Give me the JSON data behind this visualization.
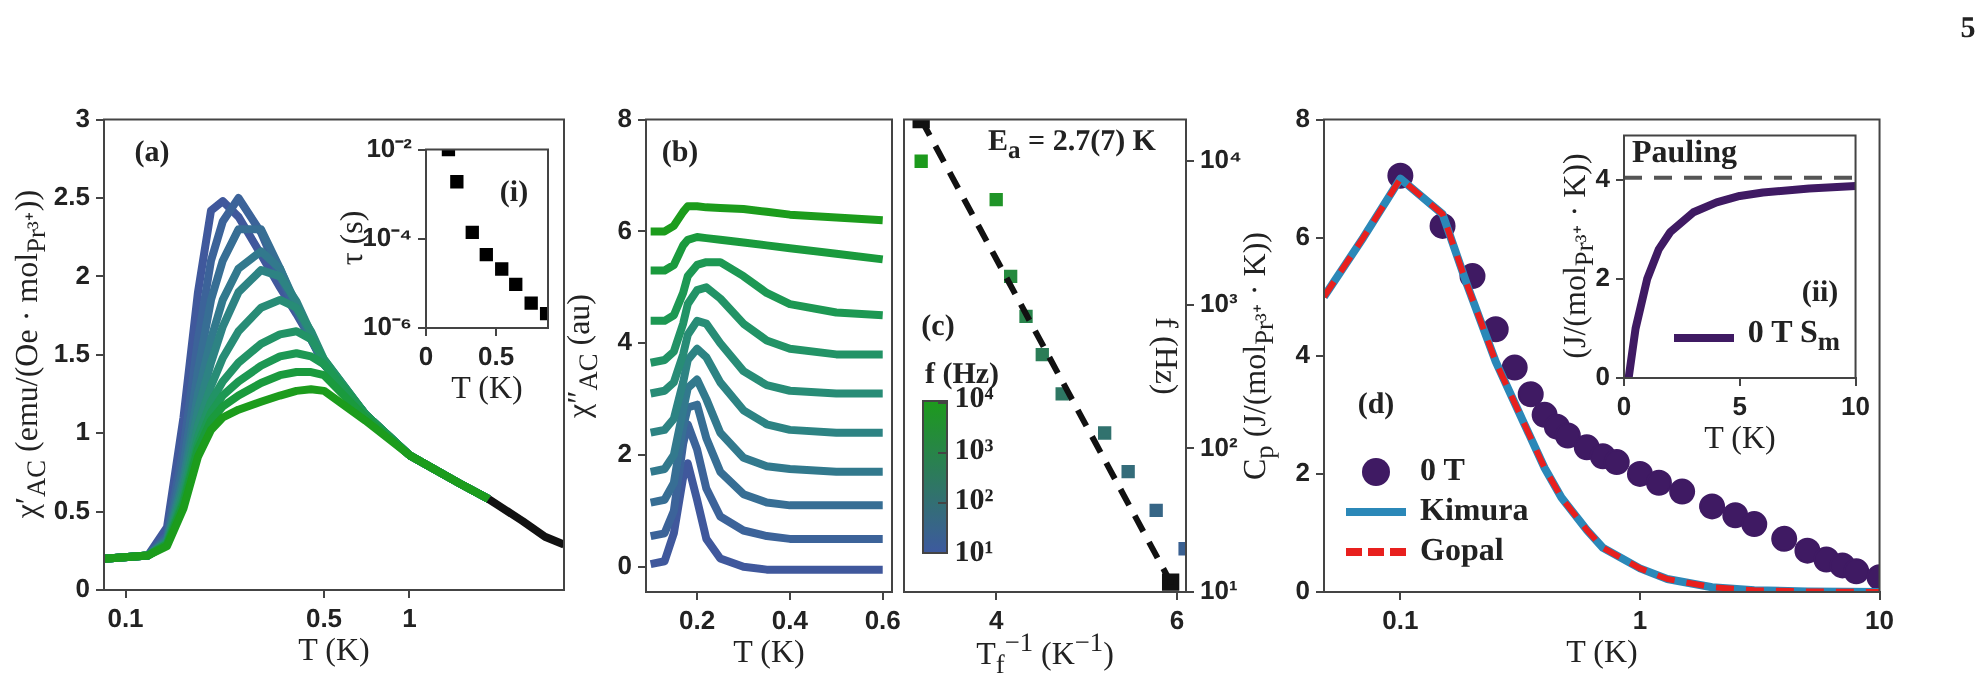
{
  "chart_data": [
    {
      "type": "line",
      "xlabel": "T (K)",
      "ylabel": "χ′$_{AC}$ (emu/(Oe · mol$_{Pr³⁺}$))",
      "log": "x",
      "xlim": [
        0.084,
        3.5
      ],
      "xticks": [
        0.1,
        0.5,
        1
      ],
      "ylim": [
        0,
        3
      ],
      "yticks": [
        0,
        0.5,
        1,
        1.5,
        2,
        2.5,
        3
      ],
      "annotations": [
        "(a)"
      ],
      "x": [
        0.084,
        0.12,
        0.14,
        0.16,
        0.18,
        0.2,
        0.22,
        0.25,
        0.3,
        0.35,
        0.4,
        0.45,
        0.5,
        0.7,
        1,
        1.5,
        1.9
      ],
      "series": [
        {
          "color": "#40589c",
          "values": [
            0.2,
            0.22,
            0.4,
            1.1,
            1.9,
            2.42,
            2.48,
            2.38,
            2.14,
            1.93,
            1.76,
            1.6,
            1.44,
            1.12,
            0.86,
            0.68,
            0.58
          ]
        },
        {
          "color": "#3c6399",
          "values": [
            0.2,
            0.22,
            0.35,
            0.9,
            1.6,
            2.1,
            2.35,
            2.5,
            2.28,
            2.0,
            1.78,
            1.6,
            1.44,
            1.12,
            0.86,
            0.68,
            0.58
          ]
        },
        {
          "color": "#376e94",
          "values": [
            0.2,
            0.22,
            0.33,
            0.8,
            1.4,
            1.85,
            2.1,
            2.3,
            2.3,
            2.05,
            1.8,
            1.6,
            1.44,
            1.12,
            0.86,
            0.68,
            0.58
          ]
        },
        {
          "color": "#32798d",
          "values": [
            0.2,
            0.22,
            0.32,
            0.72,
            1.25,
            1.6,
            1.85,
            2.05,
            2.16,
            2.05,
            1.82,
            1.62,
            1.45,
            1.12,
            0.86,
            0.68,
            0.58
          ]
        },
        {
          "color": "#2d8383",
          "values": [
            0.2,
            0.22,
            0.31,
            0.68,
            1.15,
            1.45,
            1.68,
            1.9,
            2.04,
            2.0,
            1.84,
            1.64,
            1.46,
            1.12,
            0.86,
            0.68,
            0.58
          ]
        },
        {
          "color": "#288c76",
          "values": [
            0.2,
            0.22,
            0.3,
            0.64,
            1.05,
            1.3,
            1.48,
            1.65,
            1.8,
            1.85,
            1.8,
            1.65,
            1.47,
            1.12,
            0.86,
            0.68,
            0.58
          ]
        },
        {
          "color": "#229366",
          "values": [
            0.2,
            0.22,
            0.3,
            0.6,
            0.98,
            1.2,
            1.33,
            1.45,
            1.57,
            1.63,
            1.65,
            1.6,
            1.47,
            1.12,
            0.86,
            0.68,
            0.58
          ]
        },
        {
          "color": "#1d9853",
          "values": [
            0.2,
            0.22,
            0.29,
            0.57,
            0.93,
            1.13,
            1.24,
            1.33,
            1.43,
            1.49,
            1.51,
            1.49,
            1.44,
            1.12,
            0.86,
            0.68,
            0.58
          ]
        },
        {
          "color": "#1a9a3d",
          "values": [
            0.2,
            0.22,
            0.29,
            0.55,
            0.9,
            1.08,
            1.17,
            1.24,
            1.32,
            1.37,
            1.39,
            1.39,
            1.37,
            1.1,
            0.86,
            0.68,
            0.58
          ]
        },
        {
          "color": "#1c9c1c",
          "values": [
            0.2,
            0.22,
            0.28,
            0.52,
            0.85,
            1.02,
            1.1,
            1.15,
            1.2,
            1.24,
            1.27,
            1.28,
            1.27,
            1.08,
            0.86,
            0.68,
            0.58
          ]
        },
        {
          "color": "#111111",
          "x": [
            1.9,
            2.5,
            3,
            3.5
          ],
          "values": [
            0.58,
            0.44,
            0.34,
            0.29
          ]
        }
      ]
    },
    {
      "type": "scatter",
      "marker": "square",
      "xlabel": "T (K)",
      "ylabel": "τ (s)",
      "log": "y",
      "xlim": [
        0,
        0.87
      ],
      "xticks": [
        0,
        0.5
      ],
      "ylim": [
        1e-06,
        0.01
      ],
      "yticks": [
        {
          "value": 0.01,
          "label": "10⁻²"
        },
        {
          "value": 0.0001,
          "label": "10⁻⁴"
        },
        {
          "value": 1e-06,
          "label": "10⁻⁶"
        }
      ],
      "annotations": [
        "(i)"
      ],
      "x": [
        0.16,
        0.22,
        0.33,
        0.43,
        0.54,
        0.64,
        0.75,
        0.86
      ],
      "series": [
        {
          "color": "#000000",
          "values": [
            0.01,
            0.0019,
            0.00014,
            4.4e-05,
            2.1e-05,
            9.5e-06,
            3.6e-06,
            2.1e-06
          ]
        }
      ]
    },
    {
      "type": "line",
      "xlabel": "T (K)",
      "ylabel": "χ″$_{AC}$ (au)",
      "xlim": [
        0.09,
        0.62
      ],
      "xticks": [
        0.2,
        0.4,
        0.6
      ],
      "ylim": [
        -0.45,
        8
      ],
      "yticks": [
        0,
        2,
        4,
        6,
        8
      ],
      "annotations": [
        "(b)"
      ],
      "x": [
        0.1,
        0.13,
        0.15,
        0.17,
        0.18,
        0.2,
        0.22,
        0.25,
        0.3,
        0.35,
        0.4,
        0.5,
        0.6
      ],
      "series": [
        {
          "color": "#40589c",
          "values": [
            0.05,
            0.1,
            0.6,
            1.6,
            1.85,
            1.2,
            0.5,
            0.15,
            0.0,
            -0.05,
            -0.05,
            -0.05,
            -0.05
          ]
        },
        {
          "color": "#3c6399",
          "values": [
            0.55,
            0.6,
            1.0,
            2.2,
            2.55,
            2.1,
            1.4,
            0.9,
            0.65,
            0.55,
            0.5,
            0.5,
            0.5
          ]
        },
        {
          "color": "#376e94",
          "values": [
            1.15,
            1.2,
            1.5,
            2.5,
            2.85,
            2.9,
            2.3,
            1.7,
            1.3,
            1.15,
            1.1,
            1.1,
            1.1
          ]
        },
        {
          "color": "#32798d",
          "values": [
            1.7,
            1.75,
            2.0,
            2.8,
            3.2,
            3.35,
            3.0,
            2.4,
            1.95,
            1.8,
            1.75,
            1.7,
            1.7
          ]
        },
        {
          "color": "#2d8383",
          "values": [
            2.4,
            2.45,
            2.65,
            3.3,
            3.7,
            3.9,
            3.75,
            3.3,
            2.8,
            2.55,
            2.45,
            2.4,
            2.4
          ]
        },
        {
          "color": "#288c76",
          "values": [
            3.1,
            3.15,
            3.3,
            3.8,
            4.15,
            4.4,
            4.35,
            4.0,
            3.5,
            3.25,
            3.15,
            3.1,
            3.1
          ]
        },
        {
          "color": "#229366",
          "values": [
            3.65,
            3.7,
            3.85,
            4.35,
            4.7,
            4.95,
            5.0,
            4.8,
            4.35,
            4.05,
            3.9,
            3.8,
            3.8
          ]
        },
        {
          "color": "#1d9853",
          "values": [
            4.4,
            4.4,
            4.5,
            4.9,
            5.2,
            5.4,
            5.45,
            5.45,
            5.2,
            4.9,
            4.7,
            4.55,
            4.5
          ]
        },
        {
          "color": "#1a9a3d",
          "values": [
            5.3,
            5.3,
            5.4,
            5.75,
            5.85,
            5.9,
            5.88,
            5.85,
            5.8,
            5.75,
            5.7,
            5.6,
            5.5
          ]
        },
        {
          "color": "#1c9c1c",
          "values": [
            6.0,
            6.0,
            6.1,
            6.35,
            6.45,
            6.45,
            6.43,
            6.42,
            6.4,
            6.35,
            6.3,
            6.25,
            6.2
          ]
        }
      ]
    },
    {
      "type": "scatter",
      "marker": "square",
      "xlabel": "T$_{f}$$^{−1}$ (K$^{−1}$)",
      "ylabel": "f (Hz)",
      "log": "y",
      "xlim": [
        2.98,
        6.1
      ],
      "xticks": [
        4,
        6
      ],
      "ylim": [
        10,
        19500
      ],
      "yticks": [
        {
          "value": 10,
          "label": "10¹"
        },
        {
          "value": 100,
          "label": "10²"
        },
        {
          "value": 1000,
          "label": "10³"
        },
        {
          "value": 10000,
          "label": "10⁴"
        }
      ],
      "annotations": [
        "(c)",
        "E$_{a}$ = 2.7(7) K",
        "f (Hz)",
        "10⁴",
        "10³",
        "10²",
        "10¹"
      ],
      "x": [
        3.17,
        4.0,
        4.16,
        4.33,
        4.51,
        4.73,
        5.2,
        5.46,
        5.77,
        6.09
      ],
      "series": [
        {
          "values": [
            10000,
            5400,
            1580,
            830,
            450,
            240,
            128,
            69,
            37,
            20
          ],
          "colors": [
            "#1d9a1d",
            "#209428",
            "#258a3e",
            "#28834b",
            "#2b7d57",
            "#2e7763",
            "#31726e",
            "#346c7a",
            "#376686",
            "#3a6091"
          ]
        },
        {
          "type": "line",
          "line_style": "dashed",
          "color": "#111111",
          "x": [
            3.17,
            5.93
          ],
          "values": [
            19500,
            11.7
          ]
        }
      ]
    },
    {
      "type": "line",
      "xlabel": "T (K)",
      "ylabel": "C$_{p}$ (J/(mol$_{Pr³⁺}$ · K))",
      "log": "x",
      "xlim": [
        0.048,
        10
      ],
      "xticks": [
        0.1,
        1,
        10
      ],
      "ylim": [
        0,
        8
      ],
      "yticks": [
        0,
        2,
        4,
        6,
        8
      ],
      "legend": "bottom left",
      "annotations": [
        "(d)",
        "5"
      ],
      "series": [
        {
          "name": "0 T",
          "type": "scatter",
          "marker": "circle",
          "color": "#3f1a63",
          "x": [
            0.1,
            0.15,
            0.2,
            0.25,
            0.3,
            0.35,
            0.4,
            0.45,
            0.5,
            0.6,
            0.7,
            0.8,
            1,
            1.2,
            1.5,
            2,
            2.5,
            3,
            4,
            5,
            6,
            7,
            8,
            10
          ],
          "values": [
            7.05,
            6.2,
            5.35,
            4.45,
            3.8,
            3.35,
            3.0,
            2.8,
            2.65,
            2.45,
            2.3,
            2.2,
            2.0,
            1.85,
            1.7,
            1.45,
            1.3,
            1.15,
            0.9,
            0.7,
            0.55,
            0.45,
            0.35,
            0.25
          ]
        },
        {
          "name": "Kimura",
          "color": "#2b88b8",
          "x": [
            0.048,
            0.07,
            0.1,
            0.15,
            0.19,
            0.25,
            0.3,
            0.4,
            0.47,
            0.6,
            0.7,
            1,
            1.3,
            2,
            3,
            5,
            10
          ],
          "values": [
            5.0,
            6.0,
            7.0,
            6.4,
            5.2,
            3.9,
            3.2,
            2.1,
            1.6,
            1.05,
            0.75,
            0.4,
            0.22,
            0.08,
            0.03,
            0.01,
            0
          ]
        },
        {
          "name": "Gopal",
          "line_style": "dashed",
          "color": "#e8201e",
          "x": [
            0.048,
            0.07,
            0.1,
            0.15,
            0.19,
            0.25,
            0.3,
            0.4,
            0.47,
            0.6,
            0.7,
            1,
            1.3,
            2,
            3,
            5,
            10
          ],
          "values": [
            5.0,
            6.0,
            7.0,
            6.4,
            5.2,
            3.9,
            3.2,
            2.1,
            1.6,
            1.05,
            0.75,
            0.4,
            0.22,
            0.08,
            0.03,
            0.01,
            0
          ]
        }
      ]
    },
    {
      "type": "line",
      "xlabel": "T (K)",
      "ylabel": "(J/(mol$_{Pr³⁺}$ · K))",
      "xlim": [
        0,
        10
      ],
      "xticks": [
        0,
        5,
        10
      ],
      "ylim": [
        0,
        4.9
      ],
      "yticks": [
        0,
        2,
        4
      ],
      "legend": "bottom right",
      "annotations": [
        "(ii)"
      ],
      "ref_lines": [
        {
          "axis": "y",
          "value": 4.05,
          "label": "Pauling",
          "color": "#555555",
          "line_style": "dashed"
        }
      ],
      "series": [
        {
          "name": "0 T S$_{m}$",
          "color": "#3f1a63",
          "x": [
            0.2,
            0.5,
            1,
            1.5,
            2,
            3,
            4,
            5,
            6,
            8,
            10
          ],
          "values": [
            0,
            1.0,
            2.0,
            2.6,
            2.95,
            3.35,
            3.55,
            3.68,
            3.75,
            3.83,
            3.88
          ]
        }
      ]
    }
  ]
}
